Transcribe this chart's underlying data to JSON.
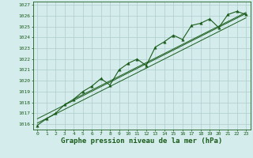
{
  "x": [
    0,
    1,
    2,
    3,
    4,
    5,
    6,
    7,
    8,
    9,
    10,
    11,
    12,
    13,
    14,
    15,
    16,
    17,
    18,
    19,
    20,
    21,
    22,
    23
  ],
  "pressure_main": [
    1015.9,
    1016.5,
    1017.0,
    1017.8,
    1018.3,
    1019.0,
    1019.5,
    1020.2,
    1019.6,
    1021.0,
    1021.6,
    1022.0,
    1021.4,
    1023.1,
    1023.6,
    1024.2,
    1023.8,
    1025.1,
    1025.3,
    1025.7,
    1024.9,
    1026.1,
    1026.4,
    1026.1
  ],
  "trend_line1_x": [
    0,
    23
  ],
  "trend_line1_y": [
    1016.1,
    1025.8
  ],
  "trend_line2_x": [
    0,
    23
  ],
  "trend_line2_y": [
    1016.5,
    1026.2
  ],
  "trend_line3_x": [
    4,
    23
  ],
  "trend_line3_y": [
    1018.3,
    1026.3
  ],
  "ylim": [
    1015.5,
    1027.3
  ],
  "xlim": [
    -0.5,
    23.5
  ],
  "yticks": [
    1016,
    1017,
    1018,
    1019,
    1020,
    1021,
    1022,
    1023,
    1024,
    1025,
    1026,
    1027
  ],
  "xticks": [
    0,
    1,
    2,
    3,
    4,
    5,
    6,
    7,
    8,
    9,
    10,
    11,
    12,
    13,
    14,
    15,
    16,
    17,
    18,
    19,
    20,
    21,
    22,
    23
  ],
  "xlabel": "Graphe pression niveau de la mer (hPa)",
  "line_color": "#1a5c1a",
  "bg_color": "#d4ecec",
  "grid_color": "#b0cccc",
  "marker": "^",
  "marker_size": 2.5,
  "tick_fontsize": 4.5,
  "label_fontsize": 6.5
}
